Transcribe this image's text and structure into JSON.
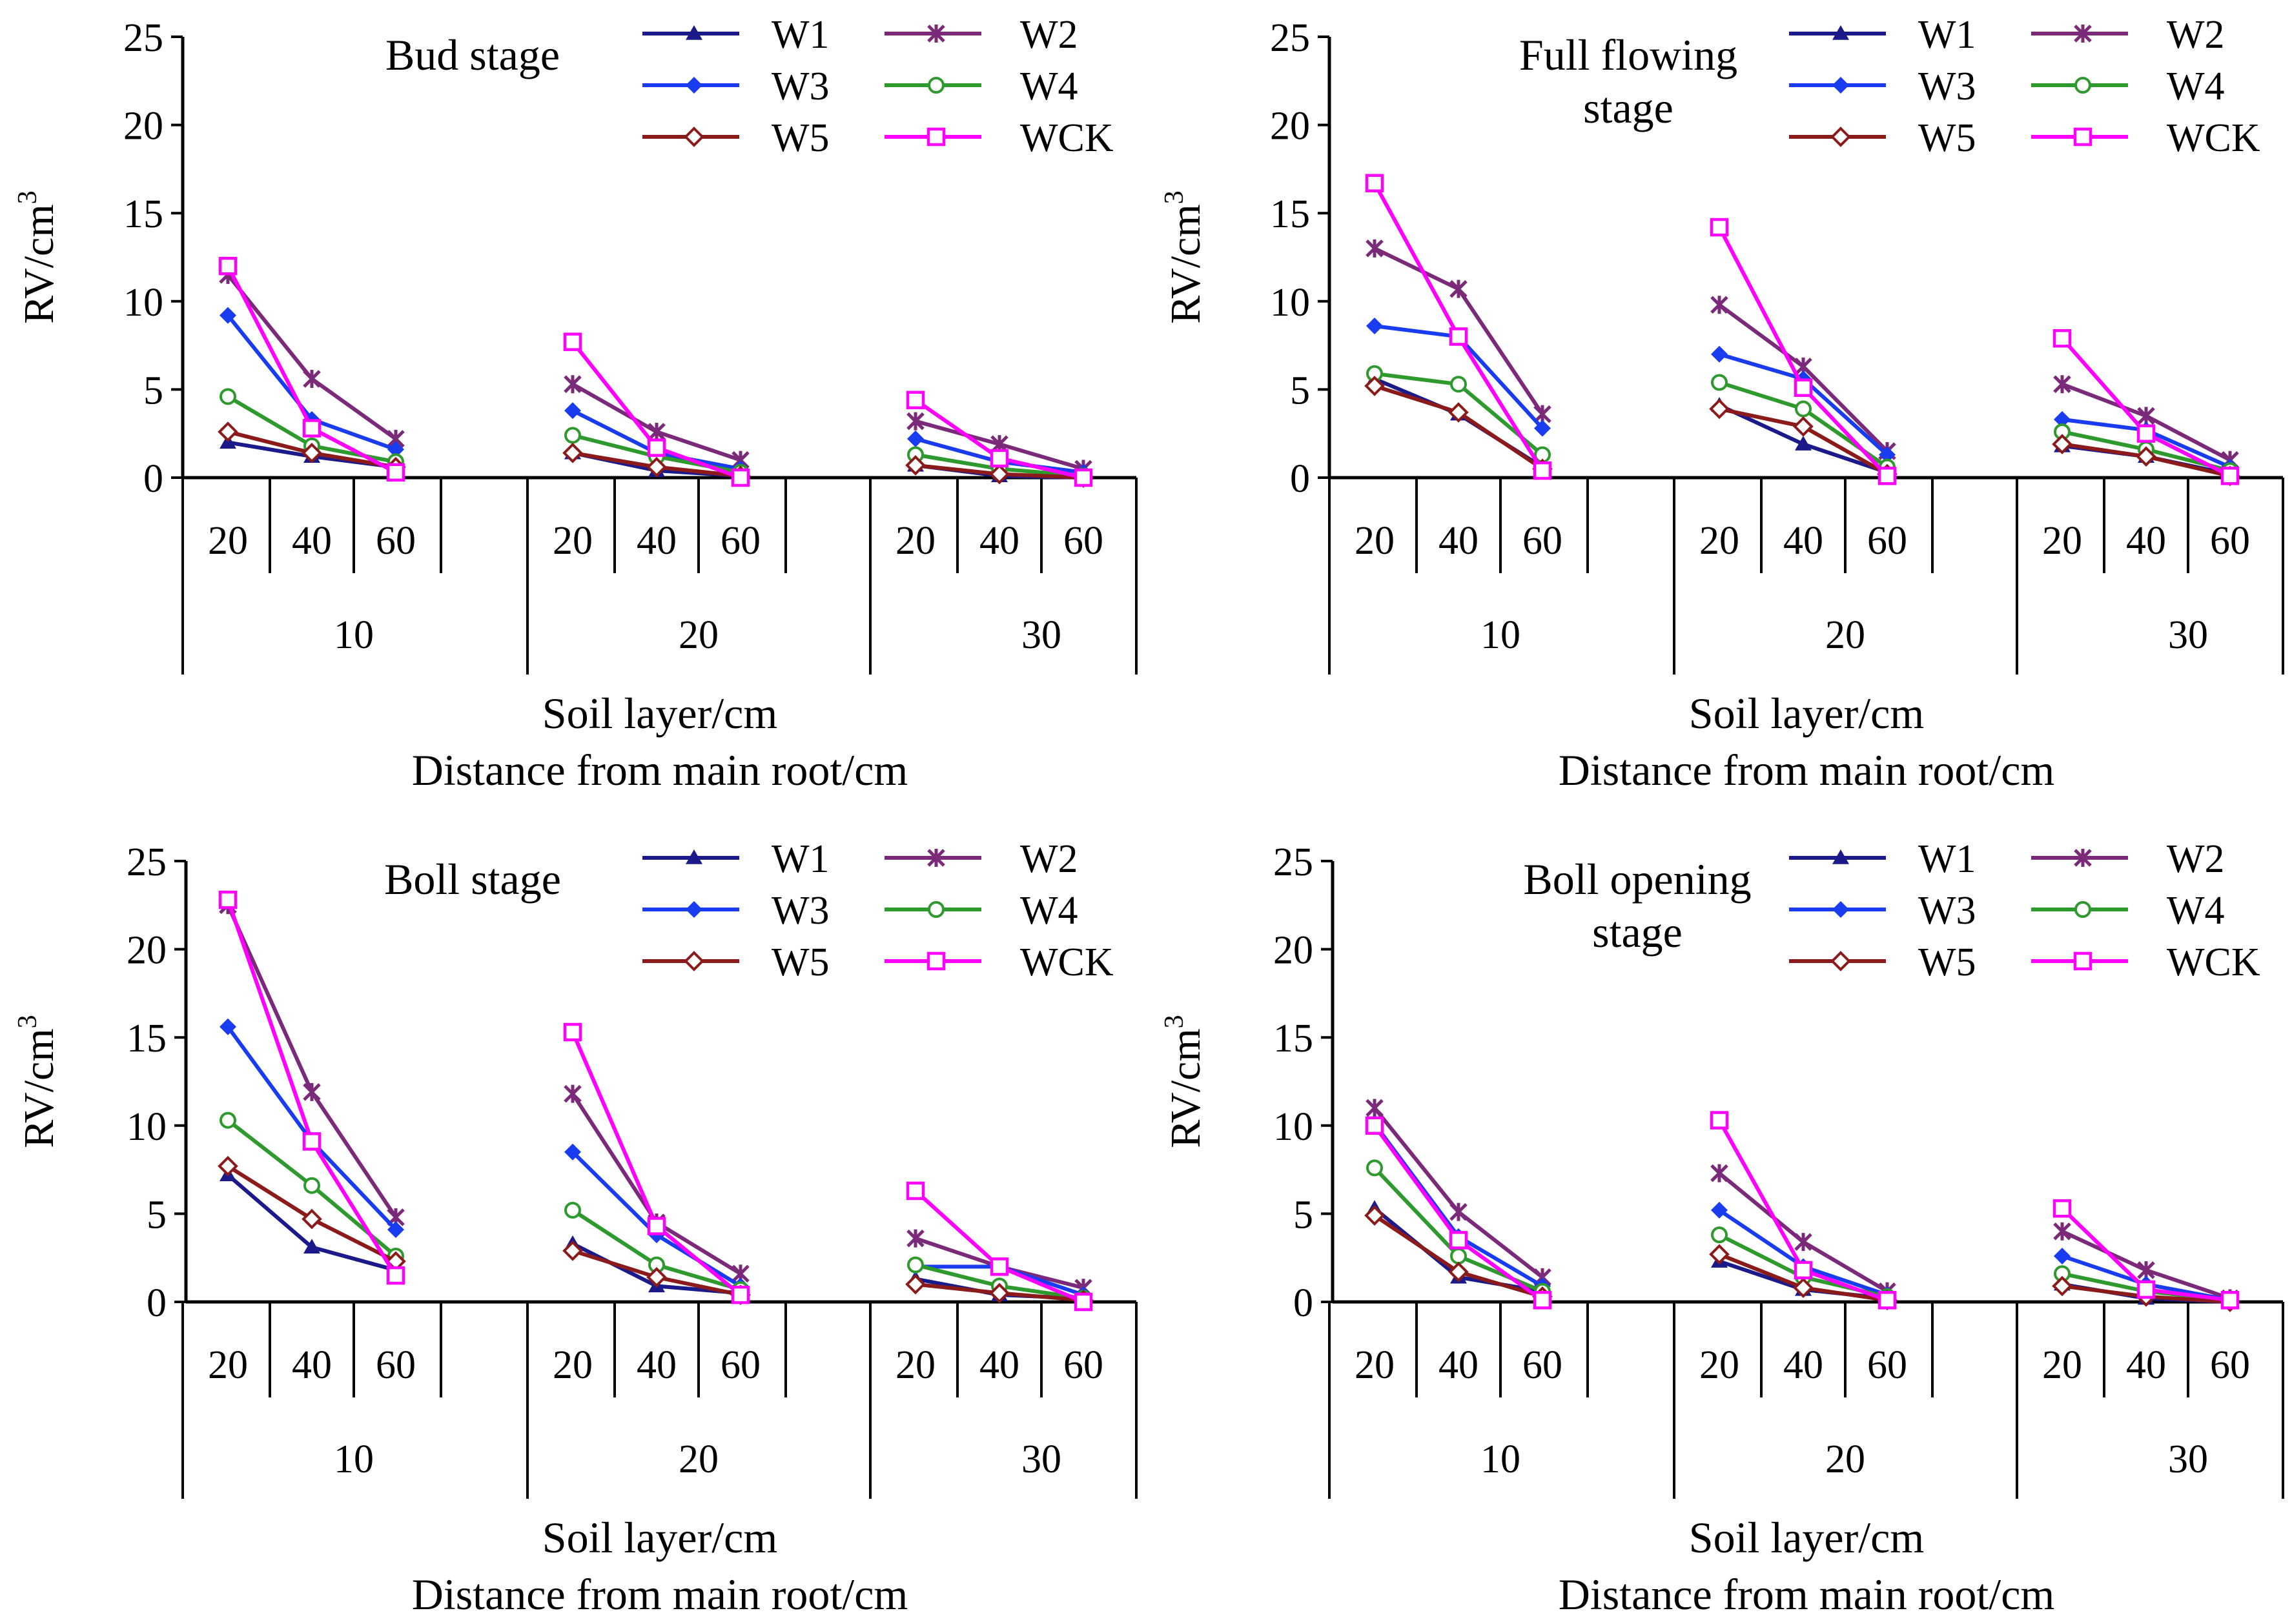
{
  "colors": {
    "W1": "#1a1a8a",
    "W2": "#7b2a7a",
    "W3": "#1a3cf0",
    "W4": "#2e9a2e",
    "W5": "#8b1a1a",
    "WCK": "#ff00ff"
  },
  "chart_data": [
    {
      "type": "line",
      "title": "Bud stage",
      "ylabel": "RV/cm3",
      "ylabel_base": "RV/cm",
      "ylabel_sup": "3",
      "xlabel_1": "Soil layer/cm",
      "xlabel_2": "Distance from main root/cm",
      "ylim": [
        0,
        25
      ],
      "yticks": [
        0,
        5,
        10,
        15,
        20,
        25
      ],
      "soil_layers": [
        "20",
        "40",
        "60"
      ],
      "distances": [
        "10",
        "20",
        "30"
      ],
      "series": [
        {
          "name": "W1",
          "marker": "triangle",
          "groups": [
            [
              2.0,
              1.2,
              0.6
            ],
            [
              1.4,
              0.4,
              0.1
            ],
            [
              0.7,
              0.1,
              0.0
            ]
          ]
        },
        {
          "name": "W2",
          "marker": "star",
          "groups": [
            [
              11.5,
              5.6,
              2.2
            ],
            [
              5.3,
              2.6,
              1.0
            ],
            [
              3.2,
              1.9,
              0.5
            ]
          ]
        },
        {
          "name": "W3",
          "marker": "diamond",
          "groups": [
            [
              9.2,
              3.3,
              1.6
            ],
            [
              3.8,
              1.4,
              0.5
            ],
            [
              2.2,
              0.9,
              0.3
            ]
          ]
        },
        {
          "name": "W4",
          "marker": "circle",
          "groups": [
            [
              4.6,
              1.8,
              0.9
            ],
            [
              2.4,
              1.2,
              0.3
            ],
            [
              1.3,
              0.5,
              0.1
            ]
          ]
        },
        {
          "name": "W5",
          "marker": "open-diamond",
          "groups": [
            [
              2.6,
              1.4,
              0.6
            ],
            [
              1.4,
              0.6,
              0.1
            ],
            [
              0.7,
              0.2,
              0.0
            ]
          ]
        },
        {
          "name": "WCK",
          "marker": "square",
          "groups": [
            [
              12.0,
              2.8,
              0.3
            ],
            [
              7.7,
              1.7,
              0.0
            ],
            [
              4.4,
              1.1,
              0.0
            ]
          ]
        }
      ]
    },
    {
      "type": "line",
      "title": "Full flowing stage",
      "title_lines": [
        "Full flowing",
        "stage"
      ],
      "ylabel": "RV/cm3",
      "ylabel_base": "RV/cm",
      "ylabel_sup": "3",
      "xlabel_1": "Soil layer/cm",
      "xlabel_2": "Distance from main root/cm",
      "ylim": [
        0,
        25
      ],
      "yticks": [
        0,
        5,
        10,
        15,
        20,
        25
      ],
      "soil_layers": [
        "20",
        "40",
        "60"
      ],
      "distances": [
        "10",
        "20",
        "30"
      ],
      "series": [
        {
          "name": "W1",
          "marker": "triangle",
          "groups": [
            [
              5.6,
              3.6,
              0.6
            ],
            [
              4.1,
              1.9,
              0.3
            ],
            [
              1.8,
              1.2,
              0.2
            ]
          ]
        },
        {
          "name": "W2",
          "marker": "star",
          "groups": [
            [
              13.0,
              10.7,
              3.6
            ],
            [
              9.8,
              6.3,
              1.5
            ],
            [
              5.3,
              3.5,
              1.0
            ]
          ]
        },
        {
          "name": "W3",
          "marker": "diamond",
          "groups": [
            [
              8.6,
              8.0,
              2.8
            ],
            [
              7.0,
              5.6,
              1.3
            ],
            [
              3.3,
              2.7,
              0.6
            ]
          ]
        },
        {
          "name": "W4",
          "marker": "circle",
          "groups": [
            [
              5.9,
              5.3,
              1.3
            ],
            [
              5.4,
              3.9,
              0.6
            ],
            [
              2.6,
              1.6,
              0.4
            ]
          ]
        },
        {
          "name": "W5",
          "marker": "open-diamond",
          "groups": [
            [
              5.2,
              3.7,
              0.5
            ],
            [
              3.9,
              2.9,
              0.2
            ],
            [
              1.9,
              1.2,
              0.1
            ]
          ]
        },
        {
          "name": "WCK",
          "marker": "square",
          "groups": [
            [
              16.7,
              8.0,
              0.4
            ],
            [
              14.2,
              5.1,
              0.1
            ],
            [
              7.9,
              2.5,
              0.1
            ]
          ]
        }
      ]
    },
    {
      "type": "line",
      "title": "Boll stage",
      "ylabel": "RV/cm3",
      "ylabel_base": "RV/cm",
      "ylabel_sup": "3",
      "xlabel_1": "Soil layer/cm",
      "xlabel_2": "Distance from main root/cm",
      "ylim": [
        0,
        25
      ],
      "yticks": [
        0,
        5,
        10,
        15,
        20,
        25
      ],
      "soil_layers": [
        "20",
        "40",
        "60"
      ],
      "distances": [
        "10",
        "20",
        "30"
      ],
      "series": [
        {
          "name": "W1",
          "marker": "triangle",
          "groups": [
            [
              7.2,
              3.1,
              1.8
            ],
            [
              3.3,
              0.9,
              0.5
            ],
            [
              1.3,
              0.4,
              0.2
            ]
          ]
        },
        {
          "name": "W2",
          "marker": "star",
          "groups": [
            [
              22.5,
              11.9,
              4.8
            ],
            [
              11.8,
              4.5,
              1.6
            ],
            [
              3.6,
              2.0,
              0.8
            ]
          ]
        },
        {
          "name": "W3",
          "marker": "diamond",
          "groups": [
            [
              15.6,
              9.1,
              4.1
            ],
            [
              8.5,
              3.8,
              0.9
            ],
            [
              2.0,
              2.0,
              0.4
            ]
          ]
        },
        {
          "name": "W4",
          "marker": "circle",
          "groups": [
            [
              10.3,
              6.6,
              2.6
            ],
            [
              5.2,
              2.1,
              0.7
            ],
            [
              2.1,
              0.9,
              0.2
            ]
          ]
        },
        {
          "name": "W5",
          "marker": "open-diamond",
          "groups": [
            [
              7.7,
              4.7,
              2.3
            ],
            [
              2.9,
              1.4,
              0.4
            ],
            [
              1.0,
              0.5,
              0.1
            ]
          ]
        },
        {
          "name": "WCK",
          "marker": "square",
          "groups": [
            [
              22.8,
              9.1,
              1.5
            ],
            [
              15.3,
              4.3,
              0.4
            ],
            [
              6.3,
              2.0,
              0.0
            ]
          ]
        }
      ]
    },
    {
      "type": "line",
      "title": "Boll opening stage",
      "title_lines": [
        "Boll opening",
        "stage"
      ],
      "ylabel": "RV/cm3",
      "ylabel_base": "RV/cm",
      "ylabel_sup": "3",
      "xlabel_1": "Soil layer/cm",
      "xlabel_2": "Distance from main root/cm",
      "ylim": [
        0,
        25
      ],
      "yticks": [
        0,
        5,
        10,
        15,
        20,
        25
      ],
      "soil_layers": [
        "20",
        "40",
        "60"
      ],
      "distances": [
        "10",
        "20",
        "30"
      ],
      "series": [
        {
          "name": "W1",
          "marker": "triangle",
          "groups": [
            [
              5.3,
              1.4,
              0.6
            ],
            [
              2.3,
              0.7,
              0.2
            ],
            [
              1.0,
              0.2,
              0.0
            ]
          ]
        },
        {
          "name": "W2",
          "marker": "star",
          "groups": [
            [
              11.0,
              5.1,
              1.4
            ],
            [
              7.3,
              3.4,
              0.6
            ],
            [
              4.0,
              1.8,
              0.2
            ]
          ]
        },
        {
          "name": "W3",
          "marker": "diamond",
          "groups": [
            [
              10.1,
              3.7,
              0.9
            ],
            [
              5.2,
              2.0,
              0.4
            ],
            [
              2.6,
              1.0,
              0.1
            ]
          ]
        },
        {
          "name": "W4",
          "marker": "circle",
          "groups": [
            [
              7.6,
              2.6,
              0.6
            ],
            [
              3.8,
              1.4,
              0.3
            ],
            [
              1.6,
              0.6,
              0.1
            ]
          ]
        },
        {
          "name": "W5",
          "marker": "open-diamond",
          "groups": [
            [
              4.9,
              1.7,
              0.3
            ],
            [
              2.7,
              0.8,
              0.1
            ],
            [
              0.9,
              0.3,
              0.0
            ]
          ]
        },
        {
          "name": "WCK",
          "marker": "square",
          "groups": [
            [
              10.0,
              3.5,
              0.1
            ],
            [
              10.3,
              1.8,
              0.1
            ],
            [
              5.3,
              0.7,
              0.1
            ]
          ]
        }
      ]
    }
  ]
}
